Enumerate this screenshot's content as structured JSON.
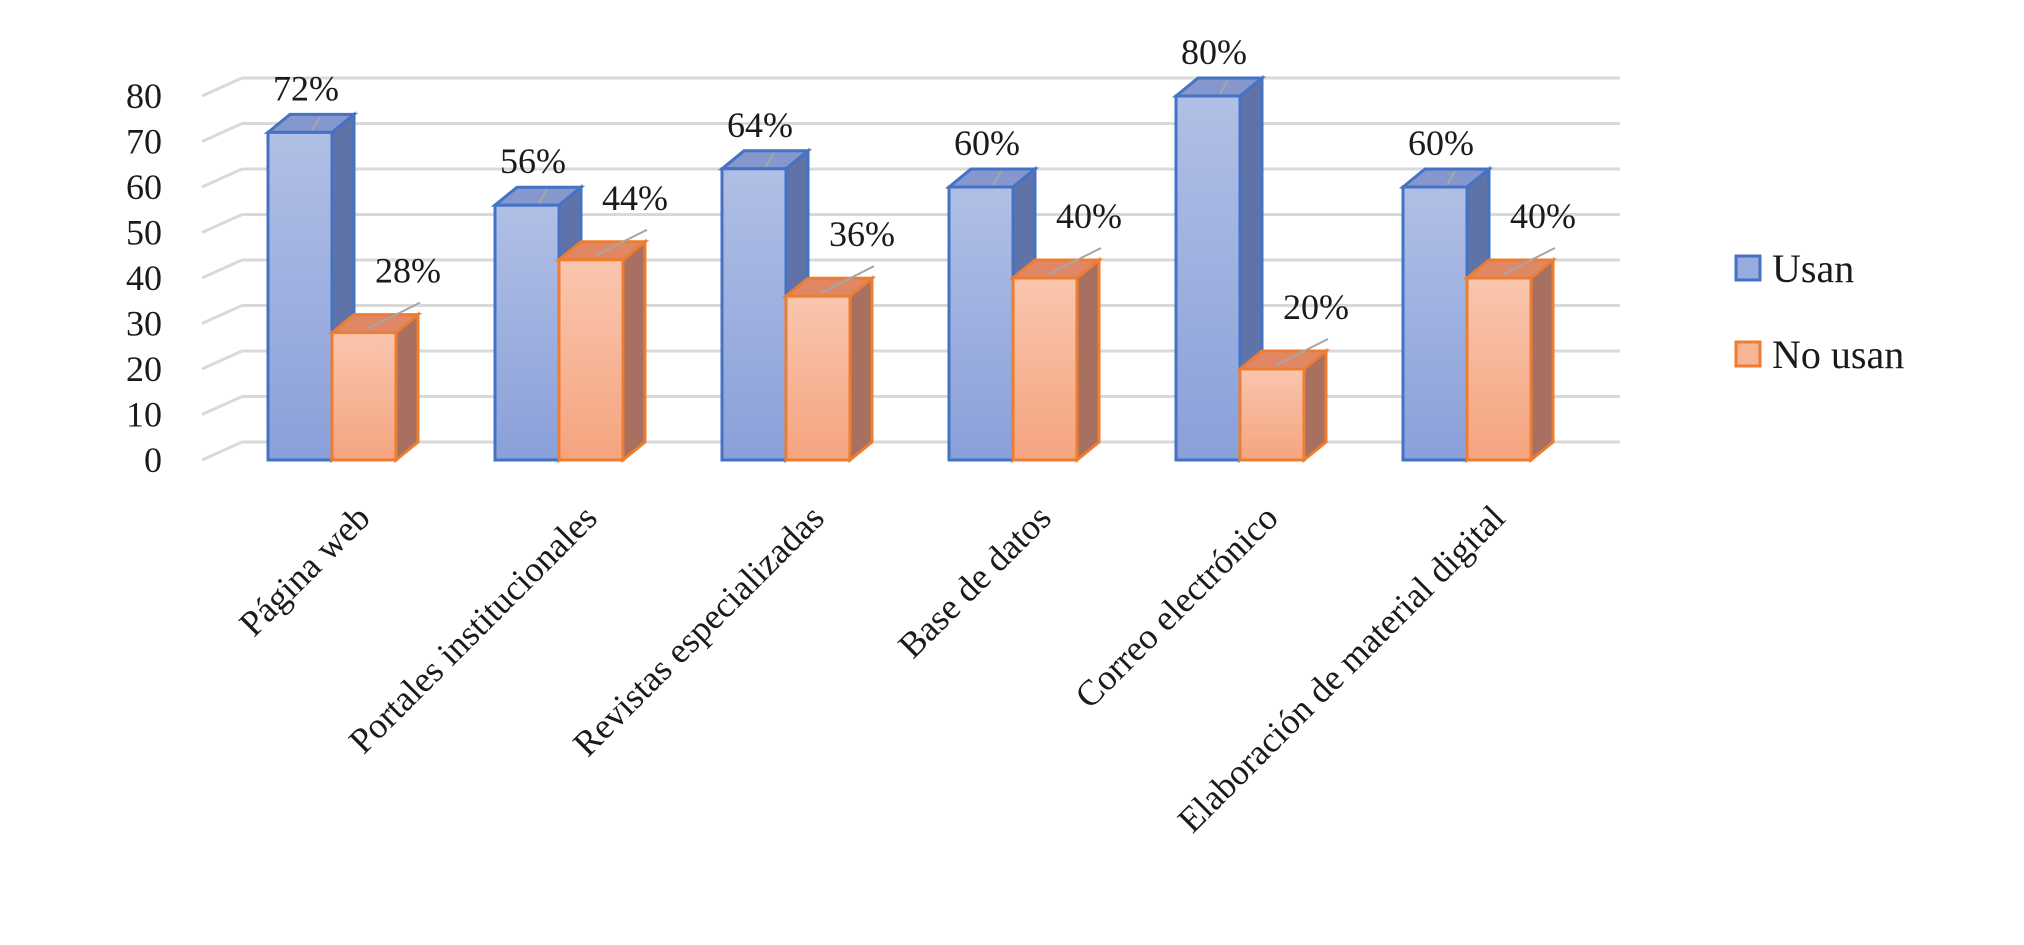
{
  "chart_data": {
    "type": "bar",
    "categories": [
      "Página web",
      "Portales institucionales",
      "Revistas especializadas",
      "Base de datos",
      "Correo electrónico",
      "Elaboración de material digital"
    ],
    "series": [
      {
        "name": "Usan",
        "values": [
          72,
          56,
          64,
          60,
          80,
          60
        ],
        "labels": [
          "72%",
          "56%",
          "64%",
          "60%",
          "80%",
          "60%"
        ]
      },
      {
        "name": "No usan",
        "values": [
          28,
          44,
          36,
          40,
          20,
          40
        ],
        "labels": [
          "28%",
          "44%",
          "36%",
          "40%",
          "20%",
          "40%"
        ]
      }
    ],
    "yticks": [
      "0",
      "10",
      "20",
      "30",
      "40",
      "50",
      "60",
      "70",
      "80"
    ],
    "ylim": [
      0,
      80
    ],
    "grid": true,
    "legend_position": "right",
    "style": "3d-clustered-column"
  },
  "colors": {
    "usan_fill": "#97ABDE",
    "usan_border": "#4472C4",
    "no_usan_fill": "#F7B496",
    "no_usan_border": "#ED7D31",
    "grid": "#D9D9D9"
  }
}
